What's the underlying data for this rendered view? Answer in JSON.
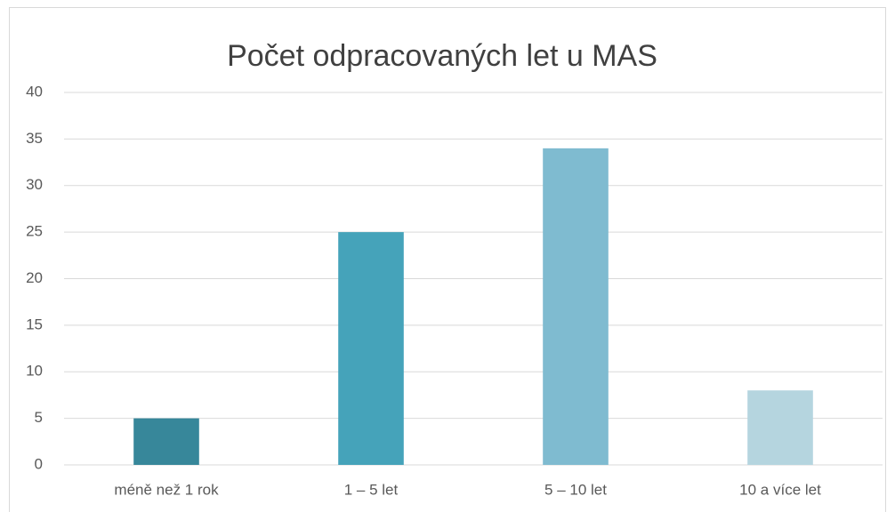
{
  "chart_data": {
    "type": "bar",
    "title": "Počet odpracovaných let u MAS",
    "categories": [
      "méně než 1 rok",
      "1 – 5 let",
      "5 – 10 let",
      "10 a více let"
    ],
    "values": [
      5,
      25,
      34,
      8
    ],
    "colors": [
      "#37879a",
      "#45a3ba",
      "#7fbbd0",
      "#b5d5df"
    ],
    "ylim": [
      0,
      40
    ],
    "yticks": [
      0,
      5,
      10,
      15,
      20,
      25,
      30,
      35,
      40
    ],
    "grid": true
  }
}
